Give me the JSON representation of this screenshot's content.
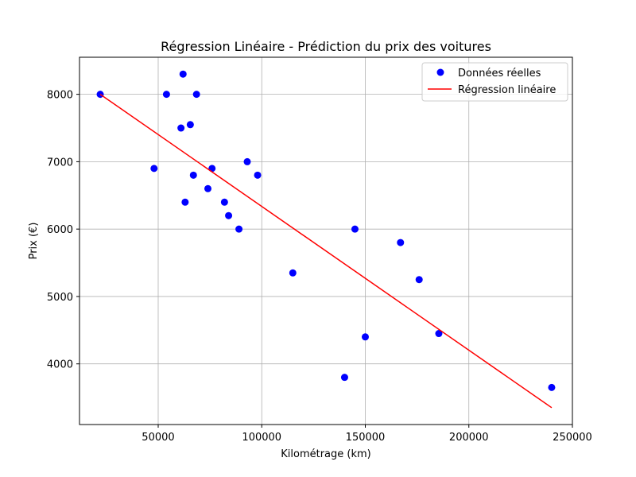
{
  "chart_data": {
    "type": "scatter",
    "title": "Régression Linéaire - Prédiction du prix des voitures",
    "xlabel": "Kilométrage (km)",
    "ylabel": "Prix (€)",
    "xlim": [
      12000,
      250000
    ],
    "ylim": [
      3100,
      8550
    ],
    "x_ticks": [
      50000,
      100000,
      150000,
      200000,
      250000
    ],
    "x_tick_labels": [
      "50000",
      "100000",
      "150000",
      "200000",
      "250000"
    ],
    "y_ticks": [
      4000,
      5000,
      6000,
      7000,
      8000
    ],
    "y_tick_labels": [
      "4000",
      "5000",
      "6000",
      "7000",
      "8000"
    ],
    "grid": true,
    "legend_position": "top-right",
    "series": [
      {
        "name": "Données réelles",
        "kind": "scatter",
        "color": "#0000ff",
        "points": [
          [
            22000,
            8000
          ],
          [
            48000,
            6900
          ],
          [
            54000,
            8000
          ],
          [
            61000,
            7500
          ],
          [
            62000,
            8300
          ],
          [
            63000,
            6400
          ],
          [
            65500,
            7550
          ],
          [
            67000,
            6800
          ],
          [
            68500,
            8000
          ],
          [
            74000,
            6600
          ],
          [
            76000,
            6900
          ],
          [
            82000,
            6400
          ],
          [
            84000,
            6200
          ],
          [
            89000,
            6000
          ],
          [
            93000,
            7000
          ],
          [
            98000,
            6800
          ],
          [
            115000,
            5350
          ],
          [
            140000,
            3800
          ],
          [
            145000,
            6000
          ],
          [
            150000,
            4400
          ],
          [
            167000,
            5800
          ],
          [
            176000,
            5250
          ],
          [
            185500,
            4450
          ],
          [
            240000,
            3650
          ]
        ]
      },
      {
        "name": "Régression linéaire",
        "kind": "line",
        "color": "#ff0000",
        "points": [
          [
            22000,
            8000
          ],
          [
            240000,
            3350
          ]
        ]
      }
    ]
  }
}
